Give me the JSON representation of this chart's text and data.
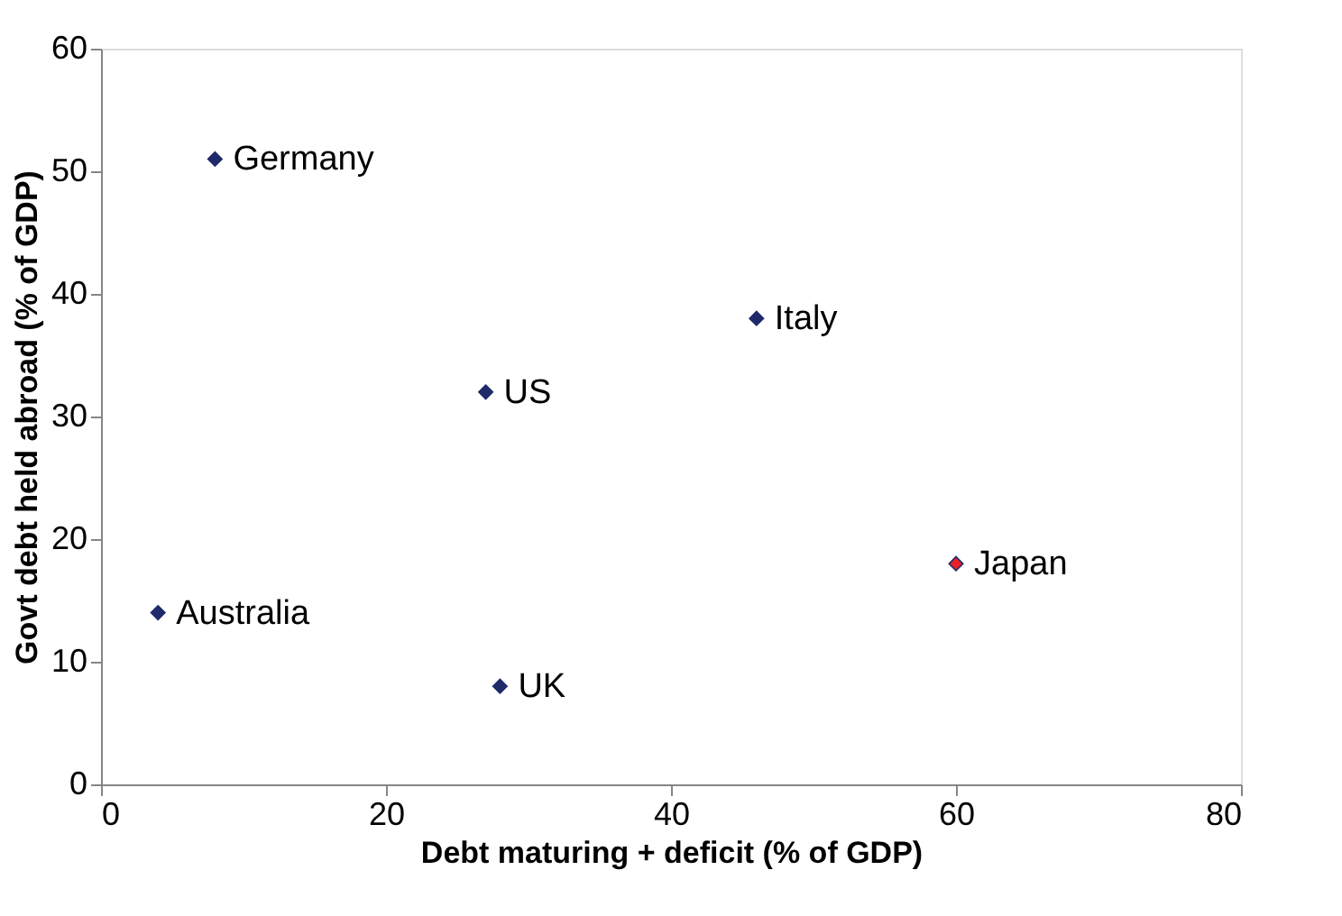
{
  "chart_data": {
    "type": "scatter",
    "xlabel": "Debt maturing + deficit (% of GDP)",
    "ylabel": "Govt debt held abroad (% of GDP)",
    "x": [
      8,
      46,
      27,
      60,
      4,
      28
    ],
    "series": [
      {
        "values": [
          51,
          38,
          32,
          18,
          14,
          8
        ],
        "colors": [
          "#1f2a6b",
          "#1f2a6b",
          "#1f2a6b",
          "#e8202a",
          "#1f2a6b",
          "#1f2a6b"
        ]
      }
    ],
    "annotations": [
      {
        "text": "Germany",
        "x": 8,
        "y": 51
      },
      {
        "text": "Italy",
        "x": 46,
        "y": 38
      },
      {
        "text": "US",
        "x": 27,
        "y": 32
      },
      {
        "text": "Japan",
        "x": 60,
        "y": 18
      },
      {
        "text": "Australia",
        "x": 4,
        "y": 14
      },
      {
        "text": "UK",
        "x": 28,
        "y": 8
      }
    ],
    "xlim": [
      0,
      80
    ],
    "xticks": [
      0,
      20,
      40,
      60,
      80
    ],
    "ylim": [
      0,
      60
    ],
    "yticks": [
      0,
      10,
      20,
      30,
      40,
      50,
      60
    ],
    "marker": "diamond",
    "grid": false,
    "legend": false
  }
}
